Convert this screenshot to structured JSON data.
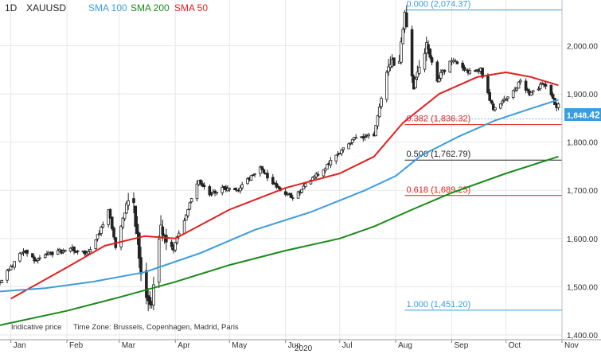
{
  "header": {
    "timeframe": "1D",
    "symbol": "XAUUSD",
    "indicators": [
      {
        "label": "SMA 100",
        "color": "#3b9ddd"
      },
      {
        "label": "SMA 200",
        "color": "#1a8a1a"
      },
      {
        "label": "SMA 50",
        "color": "#e31f1f"
      }
    ]
  },
  "footer": {
    "note": "Indicative price",
    "timezone": "Time Zone: Brussels, Copenhagen, Madrid, Paris",
    "year": "2020"
  },
  "price_tag": {
    "main": "1,848",
    "decimals": ".42",
    "value": 1848.42
  },
  "colors": {
    "candles": "#222222",
    "fib_blue": "#3b9ddd",
    "fib_red": "#e31f1f",
    "fib_black": "#222222",
    "grid": "#e8e8e8",
    "tag_bg": "#3b9ddd"
  },
  "chart_data": {
    "type": "candlestick",
    "y_range": [
      1390,
      2095
    ],
    "y_ticks": [
      {
        "value": 1400,
        "label": "1,400.00"
      },
      {
        "value": 1500,
        "label": "1,500.00"
      },
      {
        "value": 1600,
        "label": "1,600.00"
      },
      {
        "value": 1700,
        "label": "1,700.00"
      },
      {
        "value": 1800,
        "label": "1,800.00"
      },
      {
        "value": 1900,
        "label": "1,900.00"
      },
      {
        "value": 2000,
        "label": "2,000.00"
      }
    ],
    "x_ticks": [
      {
        "date": "2020-01-01",
        "label": "Jan"
      },
      {
        "date": "2020-02-01",
        "label": "Feb"
      },
      {
        "date": "2020-03-01",
        "label": "Mar"
      },
      {
        "date": "2020-04-01",
        "label": "Apr"
      },
      {
        "date": "2020-05-01",
        "label": "May"
      },
      {
        "date": "2020-06-01",
        "label": "Jun"
      },
      {
        "date": "2020-07-01",
        "label": "Jul"
      },
      {
        "date": "2020-08-01",
        "label": "Aug"
      },
      {
        "date": "2020-09-01",
        "label": "Sep"
      },
      {
        "date": "2020-10-01",
        "label": "Oct"
      },
      {
        "date": "2020-11-01",
        "label": "Nov"
      }
    ],
    "x_range": [
      "2019-12-26",
      "2020-11-01"
    ],
    "fib_levels": [
      {
        "value": 2074.37,
        "label": "0.000 (2,074.37)",
        "color": "#3b9ddd"
      },
      {
        "value": 1836.32,
        "label": "0.382 (1,836.32)",
        "color": "#e31f1f"
      },
      {
        "value": 1762.79,
        "label": "0.500 (1,762.79)",
        "color": "#222222"
      },
      {
        "value": 1689.25,
        "label": "0.618 (1,689.25)",
        "color": "#e31f1f"
      },
      {
        "value": 1451.2,
        "label": "1.000 (1,451.20)",
        "color": "#3b9ddd"
      }
    ],
    "fib_start_date": "2020-08-06",
    "price_path": [
      [
        "2019-12-26",
        1510
      ],
      [
        "2020-01-03",
        1552
      ],
      [
        "2020-01-08",
        1575
      ],
      [
        "2020-01-15",
        1555
      ],
      [
        "2020-01-24",
        1570
      ],
      [
        "2020-02-03",
        1578
      ],
      [
        "2020-02-12",
        1568
      ],
      [
        "2020-02-20",
        1620
      ],
      [
        "2020-02-24",
        1660
      ],
      [
        "2020-02-28",
        1585
      ],
      [
        "2020-03-05",
        1668
      ],
      [
        "2020-03-09",
        1675
      ],
      [
        "2020-03-13",
        1530
      ],
      [
        "2020-03-16",
        1480
      ],
      [
        "2020-03-19",
        1470
      ],
      [
        "2020-03-24",
        1620
      ],
      [
        "2020-03-31",
        1580
      ],
      [
        "2020-04-07",
        1650
      ],
      [
        "2020-04-14",
        1720
      ],
      [
        "2020-04-21",
        1690
      ],
      [
        "2020-04-28",
        1705
      ],
      [
        "2020-05-05",
        1700
      ],
      [
        "2020-05-18",
        1745
      ],
      [
        "2020-05-26",
        1710
      ],
      [
        "2020-06-05",
        1685
      ],
      [
        "2020-06-15",
        1720
      ],
      [
        "2020-06-26",
        1760
      ],
      [
        "2020-07-08",
        1805
      ],
      [
        "2020-07-20",
        1815
      ],
      [
        "2020-07-24",
        1895
      ],
      [
        "2020-07-28",
        1960
      ],
      [
        "2020-08-03",
        1975
      ],
      [
        "2020-08-06",
        2065
      ],
      [
        "2020-08-11",
        1910
      ],
      [
        "2020-08-18",
        2000
      ],
      [
        "2020-08-24",
        1930
      ],
      [
        "2020-09-01",
        1970
      ],
      [
        "2020-09-10",
        1945
      ],
      [
        "2020-09-17",
        1950
      ],
      [
        "2020-09-24",
        1865
      ],
      [
        "2020-10-01",
        1890
      ],
      [
        "2020-10-09",
        1925
      ],
      [
        "2020-10-14",
        1900
      ],
      [
        "2020-10-21",
        1920
      ],
      [
        "2020-10-26",
        1900
      ],
      [
        "2020-10-29",
        1868
      ],
      [
        "2020-10-30",
        1878
      ]
    ],
    "sma": [
      {
        "name": "SMA 50",
        "color": "#e31f1f",
        "points": [
          [
            "2020-01-01",
            1475
          ],
          [
            "2020-02-01",
            1540
          ],
          [
            "2020-02-22",
            1585
          ],
          [
            "2020-03-15",
            1605
          ],
          [
            "2020-04-01",
            1600
          ],
          [
            "2020-05-01",
            1660
          ],
          [
            "2020-06-01",
            1705
          ],
          [
            "2020-07-01",
            1735
          ],
          [
            "2020-07-20",
            1770
          ],
          [
            "2020-08-05",
            1840
          ],
          [
            "2020-08-25",
            1900
          ],
          [
            "2020-09-15",
            1935
          ],
          [
            "2020-10-01",
            1945
          ],
          [
            "2020-10-15",
            1935
          ],
          [
            "2020-10-30",
            1918
          ]
        ]
      },
      {
        "name": "SMA 100",
        "color": "#3b9ddd",
        "points": [
          [
            "2019-12-26",
            1490
          ],
          [
            "2020-01-20",
            1497
          ],
          [
            "2020-02-15",
            1510
          ],
          [
            "2020-03-15",
            1530
          ],
          [
            "2020-04-15",
            1570
          ],
          [
            "2020-05-15",
            1618
          ],
          [
            "2020-06-15",
            1655
          ],
          [
            "2020-07-15",
            1700
          ],
          [
            "2020-08-01",
            1730
          ],
          [
            "2020-08-15",
            1772
          ],
          [
            "2020-09-05",
            1812
          ],
          [
            "2020-09-25",
            1845
          ],
          [
            "2020-10-15",
            1870
          ],
          [
            "2020-10-30",
            1888
          ]
        ]
      },
      {
        "name": "SMA 200",
        "color": "#1a8a1a",
        "points": [
          [
            "2019-12-26",
            1420
          ],
          [
            "2020-02-01",
            1450
          ],
          [
            "2020-03-01",
            1478
          ],
          [
            "2020-04-01",
            1510
          ],
          [
            "2020-05-01",
            1545
          ],
          [
            "2020-06-01",
            1575
          ],
          [
            "2020-07-01",
            1600
          ],
          [
            "2020-07-20",
            1625
          ],
          [
            "2020-08-10",
            1660
          ],
          [
            "2020-09-01",
            1695
          ],
          [
            "2020-10-01",
            1735
          ],
          [
            "2020-10-30",
            1770
          ]
        ]
      }
    ]
  }
}
